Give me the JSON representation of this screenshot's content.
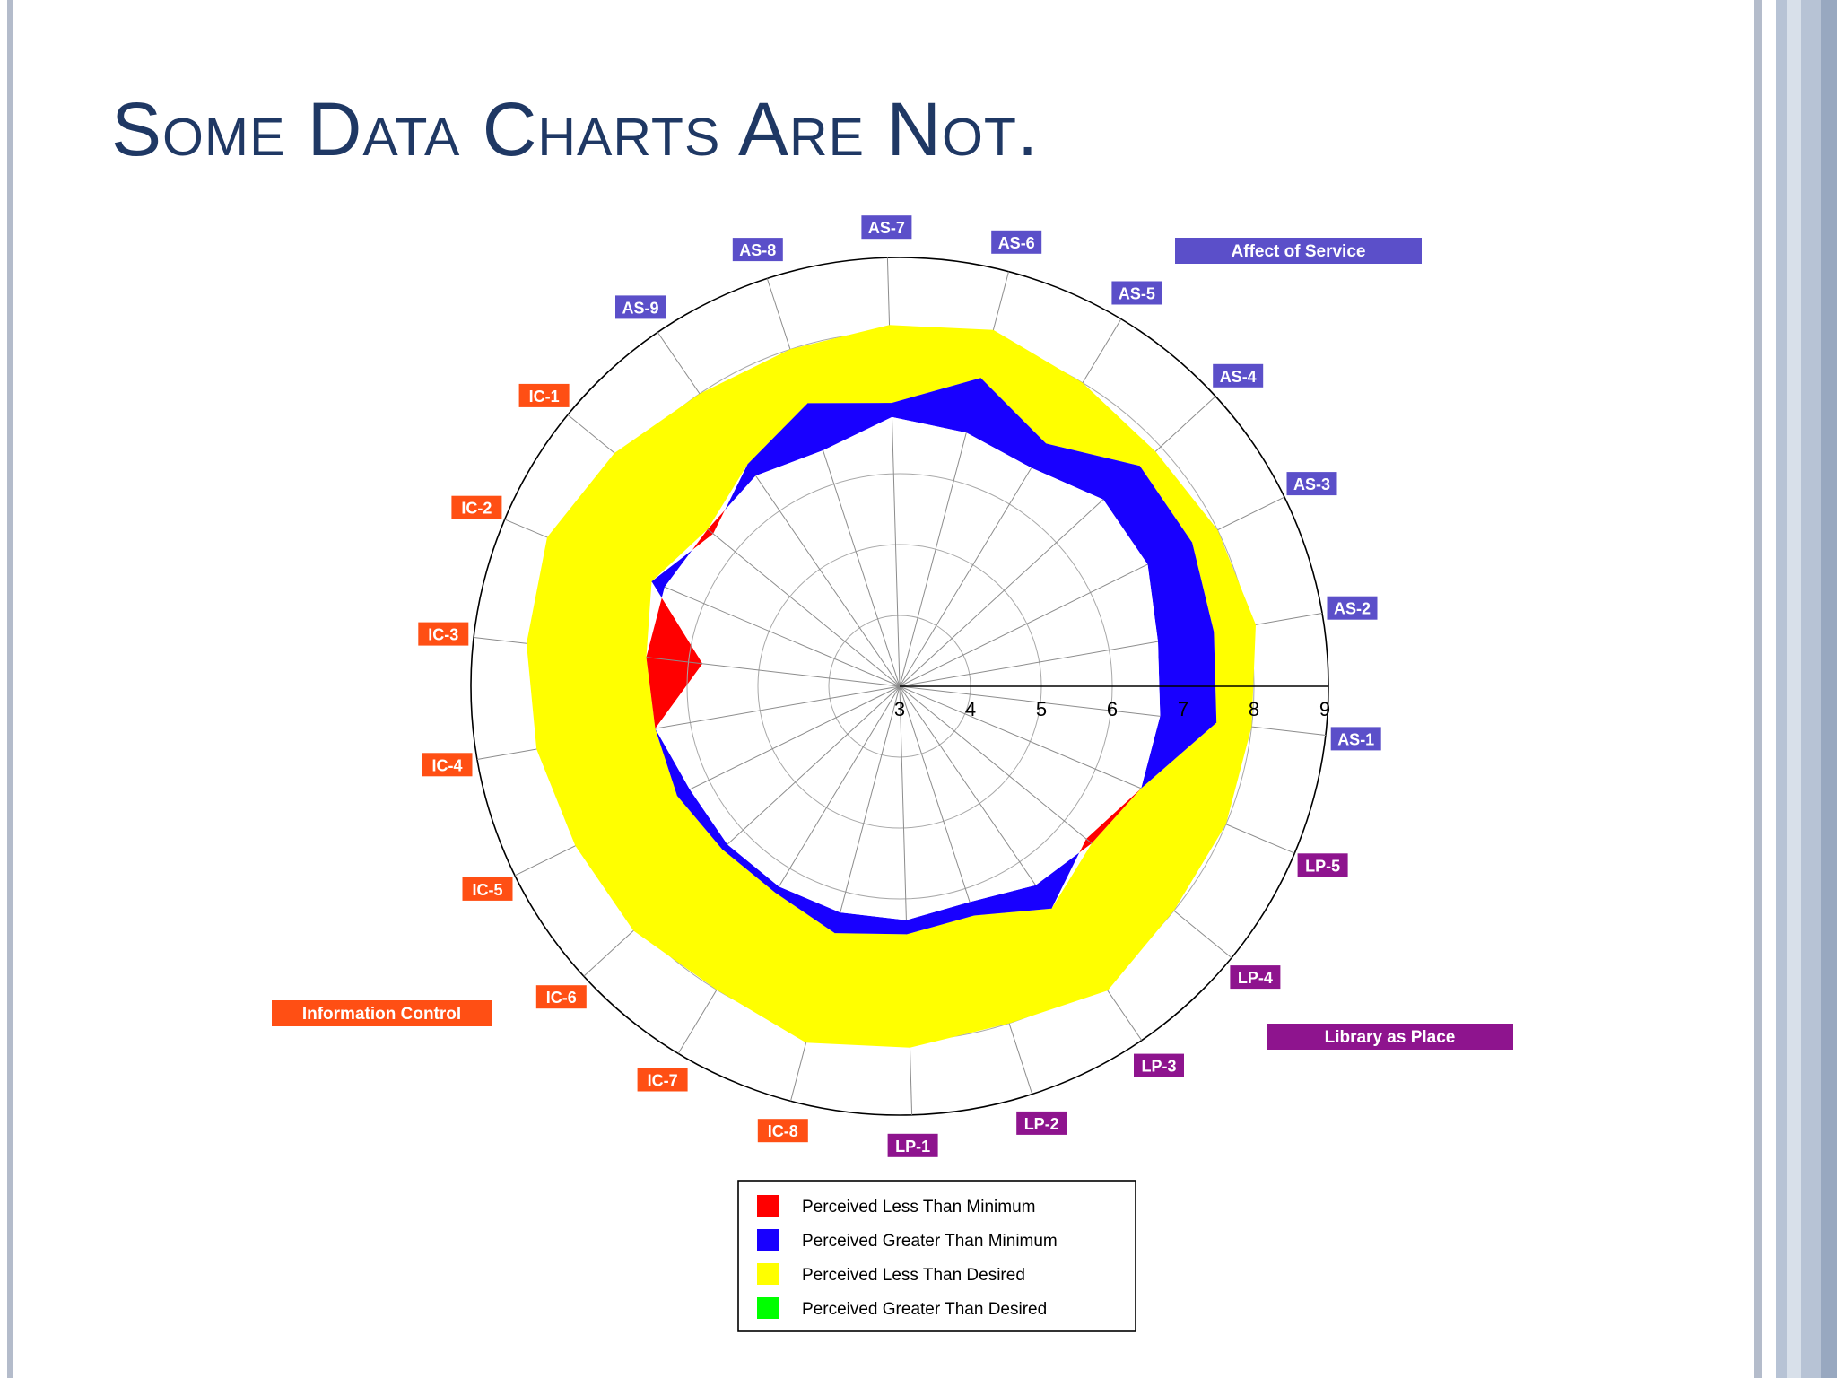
{
  "slide": {
    "title": "Some Data Charts Are Not."
  },
  "colors": {
    "title": "#1f3864",
    "affect_of_service": "#5b4fc9",
    "information_control": "#ff4f14",
    "library_as_place": "#8e148e",
    "red": "#ff0000",
    "blue": "#1800ff",
    "yellow": "#ffff00",
    "green": "#00ff00"
  },
  "chart_data": {
    "type": "radar",
    "scale_min": 3,
    "scale_max": 9,
    "scale_ticks": [
      "3",
      "4",
      "5",
      "6",
      "7",
      "8",
      "9"
    ],
    "grid": true,
    "axes": [
      "AS-1",
      "AS-2",
      "AS-3",
      "AS-4",
      "AS-5",
      "AS-6",
      "AS-7",
      "AS-8",
      "AS-9",
      "IC-1",
      "IC-2",
      "IC-3",
      "IC-4",
      "IC-5",
      "IC-6",
      "IC-7",
      "IC-8",
      "LP-1",
      "LP-2",
      "LP-3",
      "LP-4",
      "LP-5"
    ],
    "dimensions": [
      {
        "name": "Affect of Service",
        "axes": [
          "AS-1",
          "AS-2",
          "AS-3",
          "AS-4",
          "AS-5",
          "AS-6",
          "AS-7",
          "AS-8",
          "AS-9"
        ]
      },
      {
        "name": "Information Control",
        "axes": [
          "IC-1",
          "IC-2",
          "IC-3",
          "IC-4",
          "IC-5",
          "IC-6",
          "IC-7",
          "IC-8"
        ]
      },
      {
        "name": "Library as Place",
        "axes": [
          "LP-1",
          "LP-2",
          "LP-3",
          "LP-4",
          "LP-5"
        ]
      }
    ],
    "series": [
      {
        "name": "Minimum",
        "values": [
          6.7,
          6.7,
          6.9,
          6.9,
          6.6,
          6.7,
          6.8,
          6.5,
          6.6,
          6.5,
          6.6,
          6.6,
          6.5,
          6.3,
          6.3,
          6.3,
          6.3,
          6.3,
          6.2,
          6.4,
          6.5,
          6.7
        ]
      },
      {
        "name": "Perceived",
        "values": [
          7.5,
          7.5,
          7.6,
          7.6,
          7.0,
          7.5,
          7.0,
          7.2,
          6.8,
          6.4,
          6.8,
          5.8,
          6.5,
          6.5,
          6.4,
          6.4,
          6.6,
          6.5,
          6.4,
          6.8,
          6.4,
          6.7
        ]
      },
      {
        "name": "Desired",
        "values": [
          8.0,
          8.1,
          8.0,
          7.9,
          8.0,
          8.2,
          8.1,
          8.0,
          8.0,
          8.2,
          8.4,
          8.3,
          8.2,
          8.1,
          8.1,
          8.0,
          8.2,
          8.1,
          8.0,
          8.2,
          8.0,
          8.0
        ]
      }
    ],
    "legend": [
      {
        "label": "Perceived Less Than Minimum",
        "color": "#ff0000"
      },
      {
        "label": "Perceived Greater Than Minimum",
        "color": "#1800ff"
      },
      {
        "label": "Perceived Less Than Desired",
        "color": "#ffff00"
      },
      {
        "label": "Perceived Greater Than Desired",
        "color": "#00ff00"
      }
    ],
    "legend_position": "bottom-center"
  }
}
